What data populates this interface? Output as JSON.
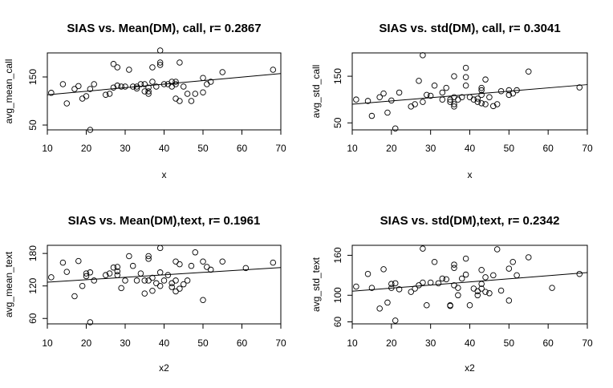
{
  "chart_data": [
    {
      "type": "scatter",
      "title": "SIAS vs. Mean(DM), call, r= 0.2867",
      "xlabel": "x",
      "ylabel": "avg_mean_call",
      "xlim": [
        10,
        70
      ],
      "ylim": [
        40,
        200
      ],
      "xticks": [
        10,
        20,
        30,
        40,
        50,
        60,
        70
      ],
      "yticks": [
        50,
        150
      ],
      "fit": {
        "x": [
          10,
          70
        ],
        "y": [
          113,
          157
        ]
      },
      "x": [
        11,
        14,
        15,
        17,
        18,
        19,
        20,
        21,
        21,
        22,
        25,
        26,
        27,
        27,
        28,
        28,
        29,
        30,
        31,
        32,
        33,
        33,
        34,
        35,
        35,
        36,
        36,
        36,
        37,
        37,
        38,
        39,
        39,
        39,
        40,
        41,
        42,
        42,
        43,
        43,
        43,
        44,
        44,
        45,
        46,
        47,
        48,
        50,
        50,
        51,
        52,
        55,
        68
      ],
      "y": [
        117,
        135,
        95,
        125,
        131,
        105,
        110,
        40,
        125,
        135,
        113,
        115,
        177,
        128,
        170,
        132,
        130,
        130,
        165,
        130,
        130,
        126,
        135,
        135,
        120,
        128,
        115,
        120,
        140,
        170,
        130,
        205,
        175,
        180,
        135,
        135,
        140,
        130,
        140,
        135,
        105,
        100,
        180,
        130,
        115,
        100,
        115,
        148,
        118,
        135,
        140,
        160,
        165
      ]
    },
    {
      "type": "scatter",
      "title": "SIAS vs. std(DM), call, r= 0.3041",
      "xlabel": "x",
      "ylabel": "avg_std_call",
      "xlim": [
        10,
        70
      ],
      "ylim": [
        35,
        200
      ],
      "xticks": [
        10,
        20,
        30,
        40,
        50,
        60,
        70
      ],
      "yticks": [
        50,
        150
      ],
      "fit": {
        "x": [
          10,
          70
        ],
        "y": [
          90,
          132
        ]
      },
      "x": [
        11,
        14,
        15,
        17,
        18,
        19,
        20,
        21,
        22,
        25,
        26,
        27,
        28,
        28,
        29,
        30,
        31,
        33,
        33,
        34,
        35,
        35,
        36,
        36,
        36,
        36,
        37,
        38,
        39,
        39,
        39,
        40,
        41,
        42,
        42,
        43,
        43,
        43,
        43,
        44,
        44,
        45,
        46,
        47,
        48,
        50,
        50,
        51,
        52,
        55,
        68
      ],
      "y": [
        100,
        97,
        65,
        105,
        113,
        72,
        98,
        38,
        115,
        85,
        90,
        140,
        195,
        95,
        110,
        108,
        130,
        115,
        100,
        125,
        100,
        95,
        150,
        105,
        85,
        90,
        100,
        105,
        168,
        130,
        148,
        105,
        100,
        102,
        95,
        120,
        110,
        125,
        92,
        90,
        143,
        105,
        86,
        90,
        118,
        120,
        110,
        113,
        120,
        160,
        126
      ]
    },
    {
      "type": "scatter",
      "title": "SIAS vs. Mean(DM),text, r= 0.1961",
      "xlabel": "x2",
      "ylabel": "avg_mean_text",
      "xlim": [
        10,
        70
      ],
      "ylim": [
        50,
        195
      ],
      "xticks": [
        10,
        20,
        30,
        40,
        50,
        60,
        70
      ],
      "yticks": [
        60,
        120,
        180
      ],
      "fit": {
        "x": [
          10,
          70
        ],
        "y": [
          127,
          154
        ]
      },
      "x": [
        11,
        14,
        15,
        17,
        18,
        19,
        20,
        20,
        21,
        21,
        22,
        25,
        26,
        27,
        28,
        28,
        28,
        29,
        30,
        31,
        32,
        33,
        34,
        35,
        35,
        36,
        36,
        36,
        37,
        37,
        38,
        39,
        39,
        39,
        40,
        41,
        42,
        42,
        43,
        43,
        43,
        44,
        44,
        45,
        46,
        47,
        48,
        50,
        50,
        51,
        52,
        55,
        61,
        68
      ],
      "y": [
        136,
        163,
        146,
        101,
        166,
        120,
        143,
        138,
        53,
        145,
        130,
        140,
        143,
        154,
        147,
        155,
        140,
        116,
        130,
        175,
        157,
        130,
        143,
        106,
        130,
        175,
        170,
        130,
        111,
        135,
        125,
        190,
        145,
        120,
        130,
        140,
        125,
        118,
        165,
        110,
        130,
        115,
        160,
        123,
        130,
        157,
        182,
        165,
        94,
        155,
        150,
        165,
        153,
        163
      ]
    },
    {
      "type": "scatter",
      "title": "SIAS vs. std(DM),text, r= 0.2342",
      "xlabel": "x2",
      "ylabel": "avg_std_text",
      "xlim": [
        10,
        70
      ],
      "ylim": [
        57,
        175
      ],
      "xticks": [
        10,
        20,
        30,
        40,
        50,
        60,
        70
      ],
      "yticks": [
        60,
        100,
        160
      ],
      "fit": {
        "x": [
          10,
          70
        ],
        "y": [
          106,
          134
        ]
      },
      "x": [
        11,
        14,
        15,
        17,
        18,
        19,
        20,
        20,
        21,
        21,
        22,
        25,
        26,
        27,
        28,
        28,
        29,
        30,
        31,
        32,
        33,
        34,
        35,
        35,
        36,
        36,
        36,
        37,
        37,
        38,
        39,
        39,
        40,
        41,
        42,
        42,
        43,
        43,
        43,
        44,
        44,
        45,
        46,
        47,
        48,
        50,
        50,
        51,
        52,
        55,
        61,
        68
      ],
      "y": [
        113,
        132,
        111,
        80,
        139,
        89,
        117,
        111,
        62,
        118,
        109,
        105,
        110,
        115,
        170,
        119,
        85,
        119,
        150,
        118,
        125,
        124,
        84,
        85,
        141,
        146,
        115,
        111,
        100,
        125,
        155,
        131,
        85,
        110,
        106,
        100,
        138,
        117,
        110,
        105,
        127,
        103,
        130,
        169,
        107,
        92,
        140,
        150,
        130,
        157,
        111,
        132
      ]
    }
  ]
}
